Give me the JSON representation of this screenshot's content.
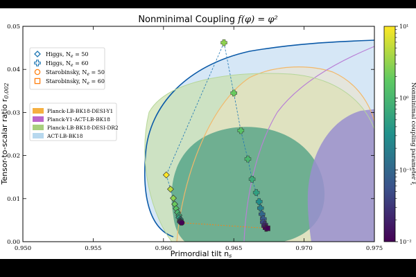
{
  "chart_data": {
    "type": "scatter",
    "title_main": "Nonminimal Coupling ",
    "title_formula": "f(φ) = φ²",
    "xlabel": "Primordial tilt n",
    "xlabel_sub": "s",
    "ylabel": "Tensor-to-scalar ratio r",
    "ylabel_sub": "0.002",
    "xlim": [
      0.95,
      0.975
    ],
    "ylim": [
      0.0,
      0.05
    ],
    "x_ticks": [
      "0.950",
      "0.955",
      "0.960",
      "0.965",
      "0.970",
      "0.975"
    ],
    "y_ticks": [
      "0.00",
      "0.01",
      "0.02",
      "0.03",
      "0.04",
      "0.05"
    ],
    "colorbar": {
      "label": "Nonminimal coupling parameter ξ",
      "scale": "log",
      "range": [
        0.01,
        10
      ],
      "ticks": [
        "10⁻²",
        "10⁻¹",
        "10⁰",
        "10¹"
      ]
    },
    "legend_models": [
      {
        "name": "Higgs, N",
        "sub": "e",
        "suffix": " = 50",
        "marker": "diamond",
        "color": "#1f77b4"
      },
      {
        "name": "Higgs, N",
        "sub": "e",
        "suffix": " = 60",
        "marker": "plus",
        "color": "#1f77b4"
      },
      {
        "name": "Starobinsky, N",
        "sub": "e",
        "suffix": " = 50",
        "marker": "circle",
        "color": "#ff7f0e"
      },
      {
        "name": "Starobinsky, N",
        "sub": "e",
        "suffix": " = 60",
        "marker": "square",
        "color": "#ff7f0e"
      }
    ],
    "legend_contours": [
      {
        "name": "Planck-LB-BK18-DESI-Y1",
        "color": "#f5b041"
      },
      {
        "name": "Planck-Y1-ACT-LB-BK18",
        "color": "#bb66cc"
      },
      {
        "name": "Planck-LB-BK18-DESI-DR2",
        "color": "#a8cf7e"
      },
      {
        "name": "ACT-LB-BK18",
        "color": "#b7d8ee"
      }
    ],
    "series": [
      {
        "name": "Higgs, Ne = 50",
        "marker": "diamond",
        "points": [
          [
            0.9602,
            0.0155,
            10
          ],
          [
            0.9605,
            0.0122,
            5
          ],
          [
            0.9607,
            0.0101,
            3
          ],
          [
            0.9608,
            0.0087,
            2
          ],
          [
            0.9609,
            0.0077,
            1.5
          ],
          [
            0.961,
            0.0068,
            1
          ],
          [
            0.9611,
            0.0061,
            0.7
          ],
          [
            0.9611,
            0.0056,
            0.5
          ],
          [
            0.9612,
            0.0052,
            0.3
          ],
          [
            0.9612,
            0.0049,
            0.2
          ],
          [
            0.9612,
            0.0047,
            0.1
          ],
          [
            0.9612,
            0.0046,
            0.05
          ],
          [
            0.9612,
            0.0045,
            0.02
          ]
        ]
      },
      {
        "name": "Higgs, Ne = 60",
        "marker": "plus",
        "points": [
          [
            0.9643,
            0.0462,
            3
          ],
          [
            0.965,
            0.0345,
            2
          ],
          [
            0.9655,
            0.0258,
            1.5
          ],
          [
            0.966,
            0.0192,
            1
          ],
          [
            0.9663,
            0.0145,
            0.7
          ],
          [
            0.9666,
            0.0114,
            0.5
          ],
          [
            0.9668,
            0.0093,
            0.3
          ],
          [
            0.9669,
            0.0078,
            0.2
          ],
          [
            0.967,
            0.0064,
            0.1
          ],
          [
            0.9671,
            0.0053,
            0.07
          ],
          [
            0.9671,
            0.0045,
            0.05
          ],
          [
            0.9672,
            0.004,
            0.03
          ],
          [
            0.9672,
            0.0036,
            0.02
          ],
          [
            0.9673,
            0.0033,
            0.015
          ],
          [
            0.9673,
            0.0031,
            0.01
          ]
        ]
      },
      {
        "name": "Starobinsky, Ne = 50",
        "marker": "circle",
        "points": [
          [
            0.9613,
            0.0044,
            0.01
          ]
        ]
      },
      {
        "name": "Starobinsky, Ne = 60",
        "marker": "square",
        "points": [
          [
            0.9674,
            0.0031,
            0.01
          ]
        ]
      }
    ]
  }
}
